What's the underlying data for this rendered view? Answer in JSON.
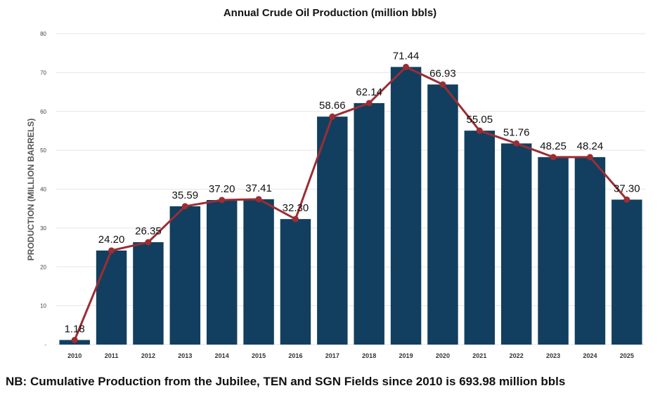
{
  "chart_data": {
    "type": "bar",
    "title": "Annual Crude Oil Production (million bbls)",
    "xlabel": "",
    "ylabel": "PRODUCTION (MILLION BARRELS)",
    "ylim": [
      0,
      80
    ],
    "yticks": [
      0,
      10,
      20,
      30,
      40,
      50,
      60,
      70,
      80
    ],
    "ytick_labels": [
      "-",
      "10",
      "20",
      "30",
      "40",
      "50",
      "60",
      "70",
      "80"
    ],
    "categories": [
      "2010",
      "2011",
      "2012",
      "2013",
      "2014",
      "2015",
      "2016",
      "2017",
      "2018",
      "2019",
      "2020",
      "2021",
      "2022",
      "2023",
      "2024",
      "2025"
    ],
    "values": [
      1.18,
      24.2,
      26.35,
      35.59,
      37.2,
      37.41,
      32.3,
      58.66,
      62.14,
      71.44,
      66.93,
      55.05,
      51.76,
      48.25,
      48.24,
      37.3
    ],
    "data_labels": [
      "1.18",
      "24.20",
      "26.35",
      "35.59",
      "37.20",
      "37.41",
      "32.30",
      "58.66",
      "62.14",
      "71.44",
      "66.93",
      "55.05",
      "51.76",
      "48.25",
      "48.24",
      "37.30"
    ],
    "overlay_line": true,
    "grid": true,
    "legend": "none",
    "colors": {
      "bar": "#123f5f",
      "line": "#9b2d35",
      "grid": "#e6e6e6"
    }
  },
  "footnote": "NB: Cumulative Production from the Jubilee, TEN and SGN Fields since 2010 is 693.98 million bbls"
}
